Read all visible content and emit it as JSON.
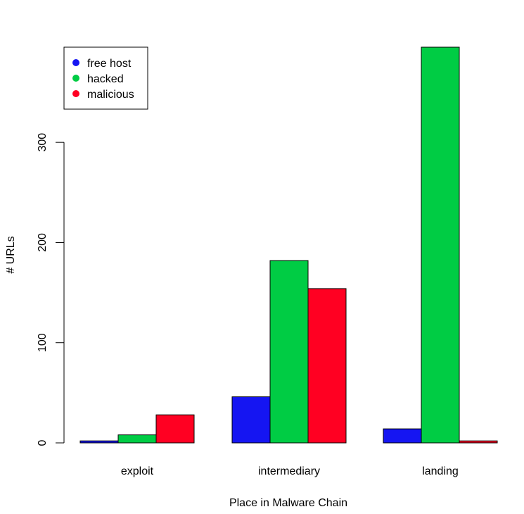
{
  "chart_data": {
    "type": "bar",
    "title": "",
    "xlabel": "Place in Malware Chain",
    "ylabel": "# URLs",
    "categories": [
      "exploit",
      "intermediary",
      "landing"
    ],
    "series": [
      {
        "name": "free host",
        "color": "#1515f2",
        "values": [
          2,
          46,
          14
        ]
      },
      {
        "name": "hacked",
        "color": "#00cc44",
        "values": [
          8,
          182,
          395
        ]
      },
      {
        "name": "malicious",
        "color": "#ff0022",
        "values": [
          28,
          154,
          2
        ]
      }
    ],
    "ylim": [
      0,
      395
    ],
    "yticks": [
      0,
      100,
      200,
      300
    ],
    "grid": false,
    "legend_position": "top-left"
  }
}
